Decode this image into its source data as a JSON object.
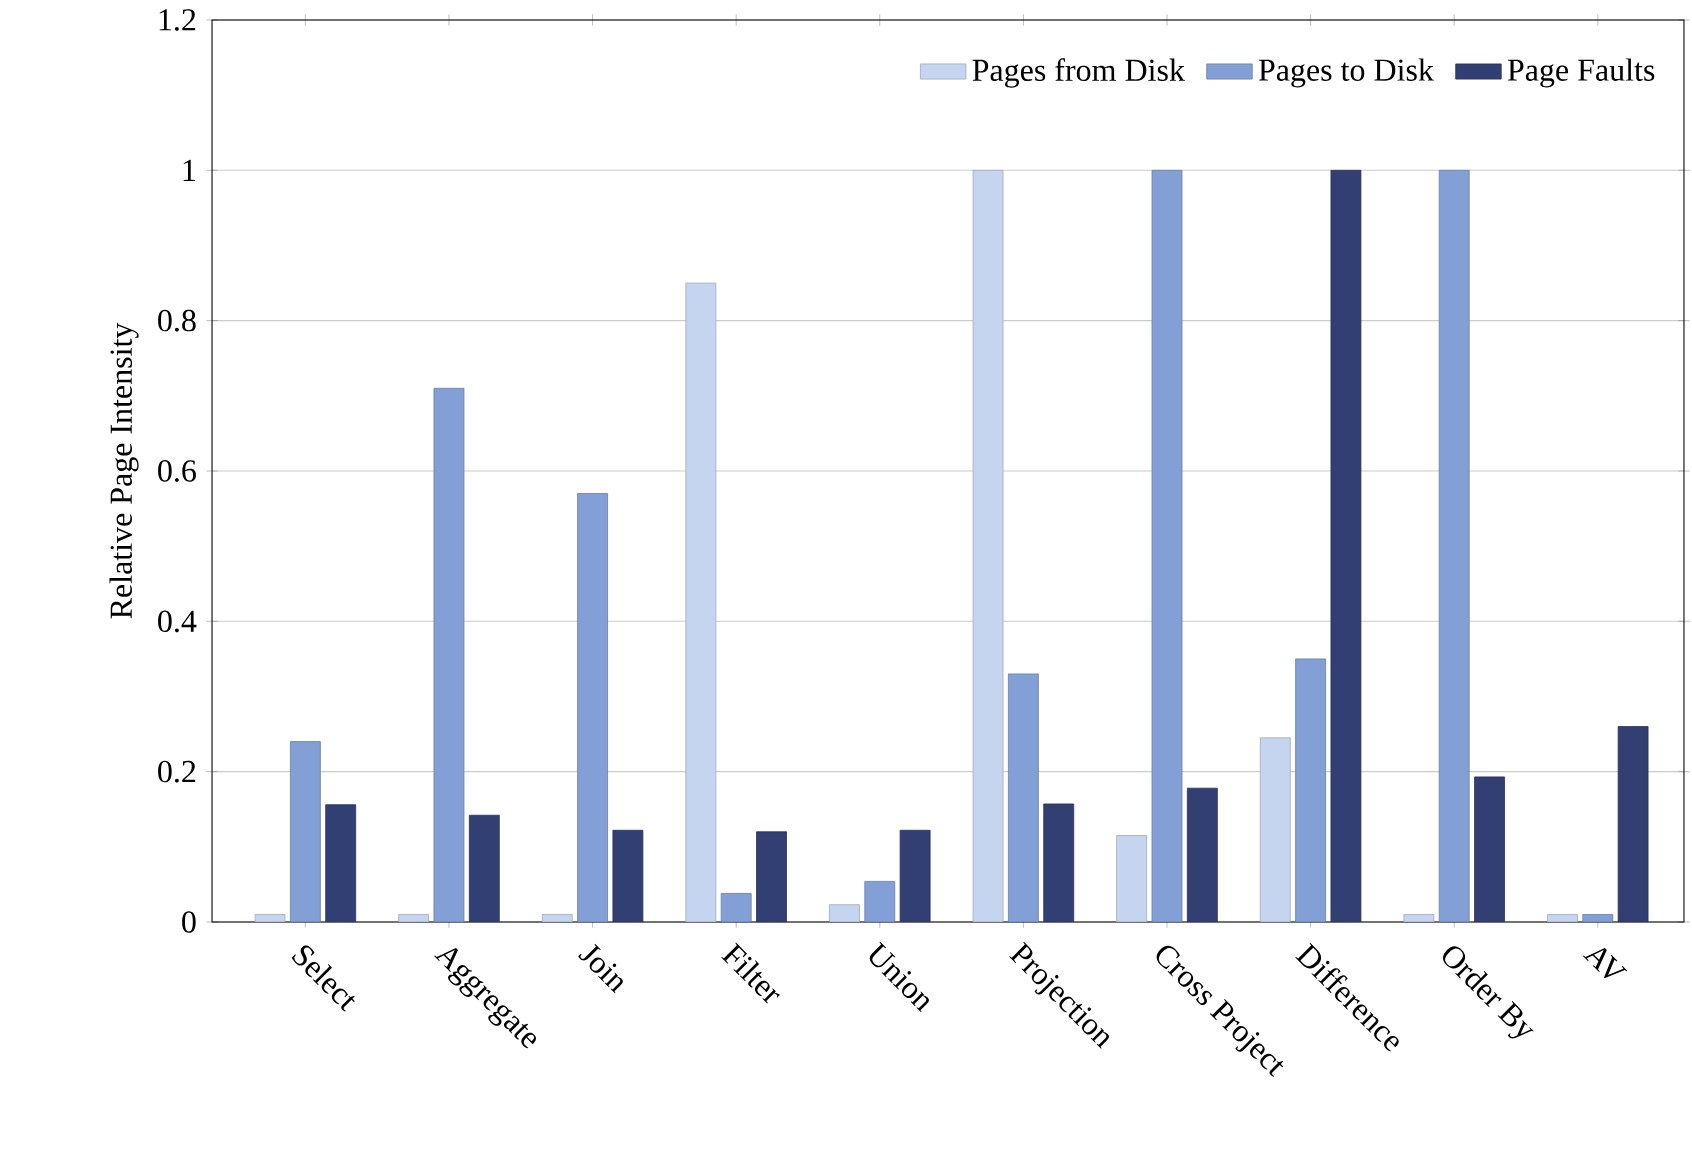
{
  "chart_data": {
    "type": "bar",
    "ylabel": "Relative Page Intensity",
    "categories": [
      "Select",
      "Aggregate",
      "Join",
      "Filter",
      "Union",
      "Projection",
      "Cross Project",
      "Difference",
      "Order By",
      "AV"
    ],
    "series": [
      {
        "name": "Pages from Disk",
        "color": "#c6d5ef",
        "values": [
          0.01,
          0.01,
          0.01,
          0.85,
          0.023,
          1,
          0.115,
          0.245,
          0.01,
          0.01
        ]
      },
      {
        "name": "Pages to Disk",
        "color": "#829fd6",
        "values": [
          0.24,
          0.71,
          0.57,
          0.038,
          0.054,
          0.33,
          1,
          0.35,
          1,
          0.01
        ]
      },
      {
        "name": "Page Faults",
        "color": "#323f72",
        "values": [
          0.156,
          0.142,
          0.122,
          0.12,
          0.122,
          0.157,
          0.178,
          1,
          0.193,
          0.26
        ]
      }
    ],
    "ylim": [
      0,
      1.2
    ],
    "yticks": [
      0,
      0.2,
      0.4,
      0.6,
      0.8,
      1,
      1.2
    ],
    "grid": "y",
    "legend": "top right"
  }
}
